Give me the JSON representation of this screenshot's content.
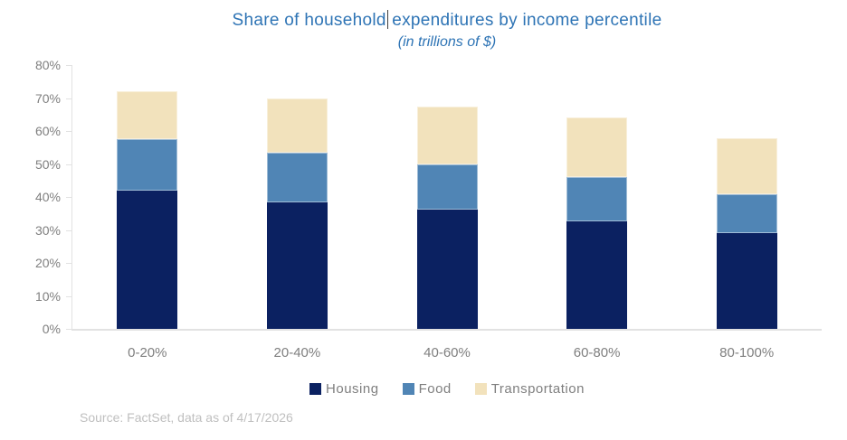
{
  "title": {
    "part1": "Share of household",
    "part2": "expenditures by income percentile",
    "subtitle": "(in trillions of $)"
  },
  "source": "Source: FactSet, data as of 4/17/2026",
  "colors": {
    "title_blue": "#2E74B5",
    "axis_gray": "#E2E2E2",
    "label_gray": "#7F7F7F",
    "source_gray": "#BFBFBF"
  },
  "chart_data": {
    "type": "bar",
    "stacked": true,
    "title": "Share of household expenditures by income percentile",
    "subtitle": "(in trillions of $)",
    "categories": [
      "0-20%",
      "20-40%",
      "40-60%",
      "60-80%",
      "80-100%"
    ],
    "series": [
      {
        "name": "Housing",
        "color": "#0B2161",
        "values": [
          41.8,
          38.4,
          36.2,
          32.5,
          29.1
        ]
      },
      {
        "name": "Food",
        "color": "#5085B5",
        "values": [
          15.8,
          15.1,
          13.6,
          13.5,
          11.7
        ]
      },
      {
        "name": "Transportation",
        "color": "#F2E2BC",
        "values": [
          14.5,
          16.5,
          17.7,
          18.0,
          17.1
        ]
      }
    ],
    "stack_totals": [
      72.1,
      70.0,
      67.5,
      64.0,
      57.9
    ],
    "ylim": [
      0,
      80
    ],
    "ytick_step": 10,
    "ytick_suffix": "%",
    "grid": false,
    "legend_position": "bottom"
  }
}
